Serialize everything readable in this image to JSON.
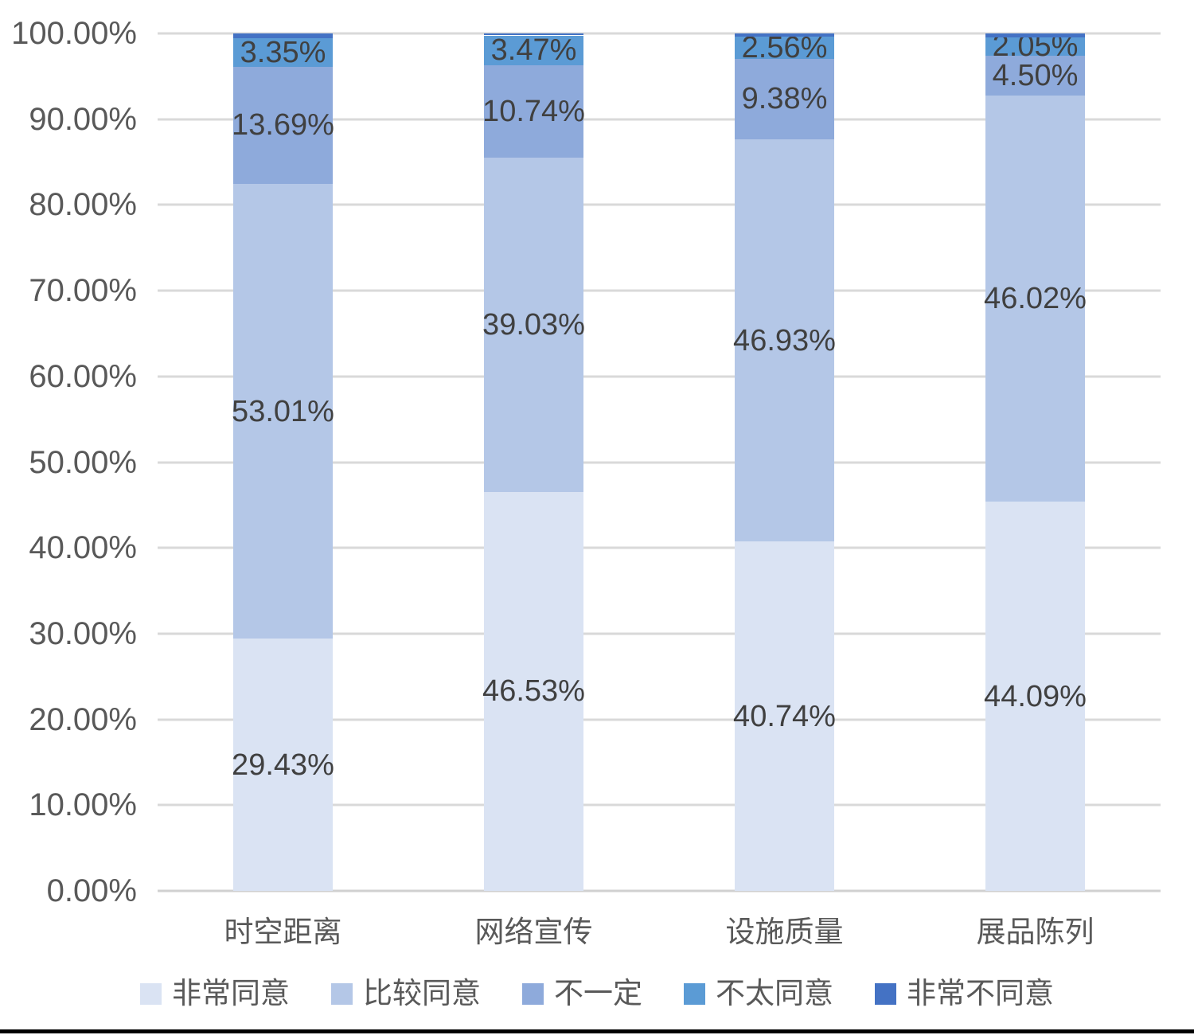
{
  "chart_data": {
    "type": "bar",
    "subtype": "stacked-100-percent-column",
    "categories": [
      "时空距离",
      "网络宣传",
      "设施质量",
      "展品陈列"
    ],
    "series": [
      {
        "name": "非常同意",
        "color": "#dae3f3",
        "values": [
          29.43,
          46.53,
          40.74,
          44.09
        ],
        "labels": [
          "29.43%",
          "46.53%",
          "40.74%",
          "44.09%"
        ],
        "show_labels": true
      },
      {
        "name": "比较同意",
        "color": "#b4c7e7",
        "values": [
          53.01,
          39.03,
          46.93,
          46.02
        ],
        "labels": [
          "53.01%",
          "39.03%",
          "46.93%",
          "46.02%"
        ],
        "show_labels": true
      },
      {
        "name": "不一定",
        "color": "#8eaadb",
        "values": [
          13.69,
          10.74,
          9.38,
          4.5
        ],
        "labels": [
          "13.69%",
          "10.74%",
          "9.38%",
          "4.50%"
        ],
        "show_labels": true
      },
      {
        "name": "不太同意",
        "color": "#5b9bd5",
        "values": [
          3.35,
          3.47,
          2.56,
          2.05
        ],
        "labels": [
          "3.35%",
          "3.47%",
          "2.56%",
          "2.05%"
        ],
        "show_labels": true
      },
      {
        "name": "非常不同意",
        "color": "#4472c4",
        "values": [
          0.52,
          0.23,
          0.39,
          0.44
        ],
        "labels": [
          "",
          "",
          "",
          ""
        ],
        "show_labels": false
      }
    ],
    "y_axis": {
      "min": 0,
      "max": 100,
      "step": 10,
      "ticks": [
        "0.00%",
        "10.00%",
        "20.00%",
        "30.00%",
        "40.00%",
        "50.00%",
        "60.00%",
        "70.00%",
        "80.00%",
        "90.00%",
        "100.00%"
      ]
    },
    "legend_position": "bottom",
    "grid": true,
    "title": "",
    "xlabel": "",
    "ylabel": ""
  },
  "style": {
    "grid_color": "#d9d9d9",
    "axis_line_color": "#d0d0d0",
    "axis_text_color": "#595959",
    "data_label_color": "#404040",
    "category_text_color": "#595959",
    "legend_text_color": "#595959",
    "background": "#ffffff",
    "bottom_rule_color": "#000000"
  }
}
